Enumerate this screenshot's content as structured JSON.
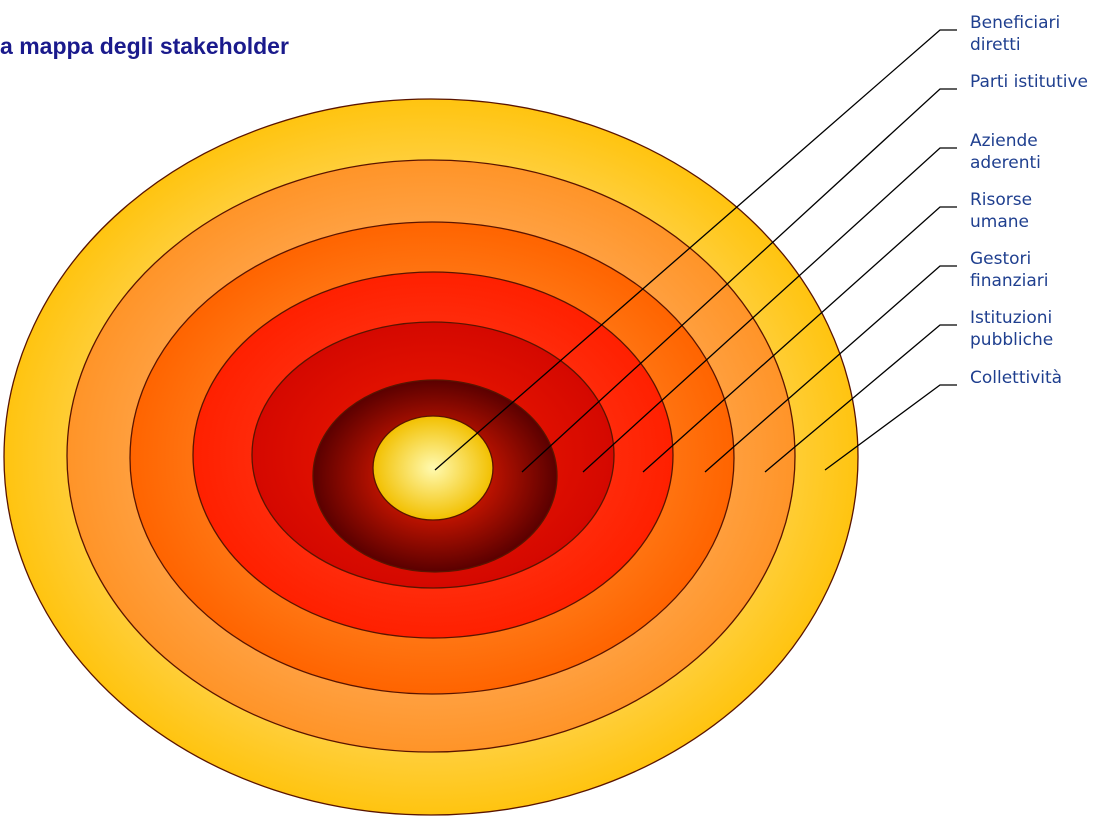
{
  "header": {
    "title": "La mappa degli stakeholder"
  },
  "labels": [
    {
      "lines": [
        "Beneficiari",
        "diretti"
      ]
    },
    {
      "lines": [
        "Parti istitutive"
      ]
    },
    {
      "lines": [
        "Aziende",
        "aderenti"
      ]
    },
    {
      "lines": [
        "Risorse",
        "umane"
      ]
    },
    {
      "lines": [
        "Gestori",
        "finanziari"
      ]
    },
    {
      "lines": [
        "Istituzioni",
        "pubbliche"
      ]
    },
    {
      "lines": [
        "Collettività"
      ]
    }
  ]
}
